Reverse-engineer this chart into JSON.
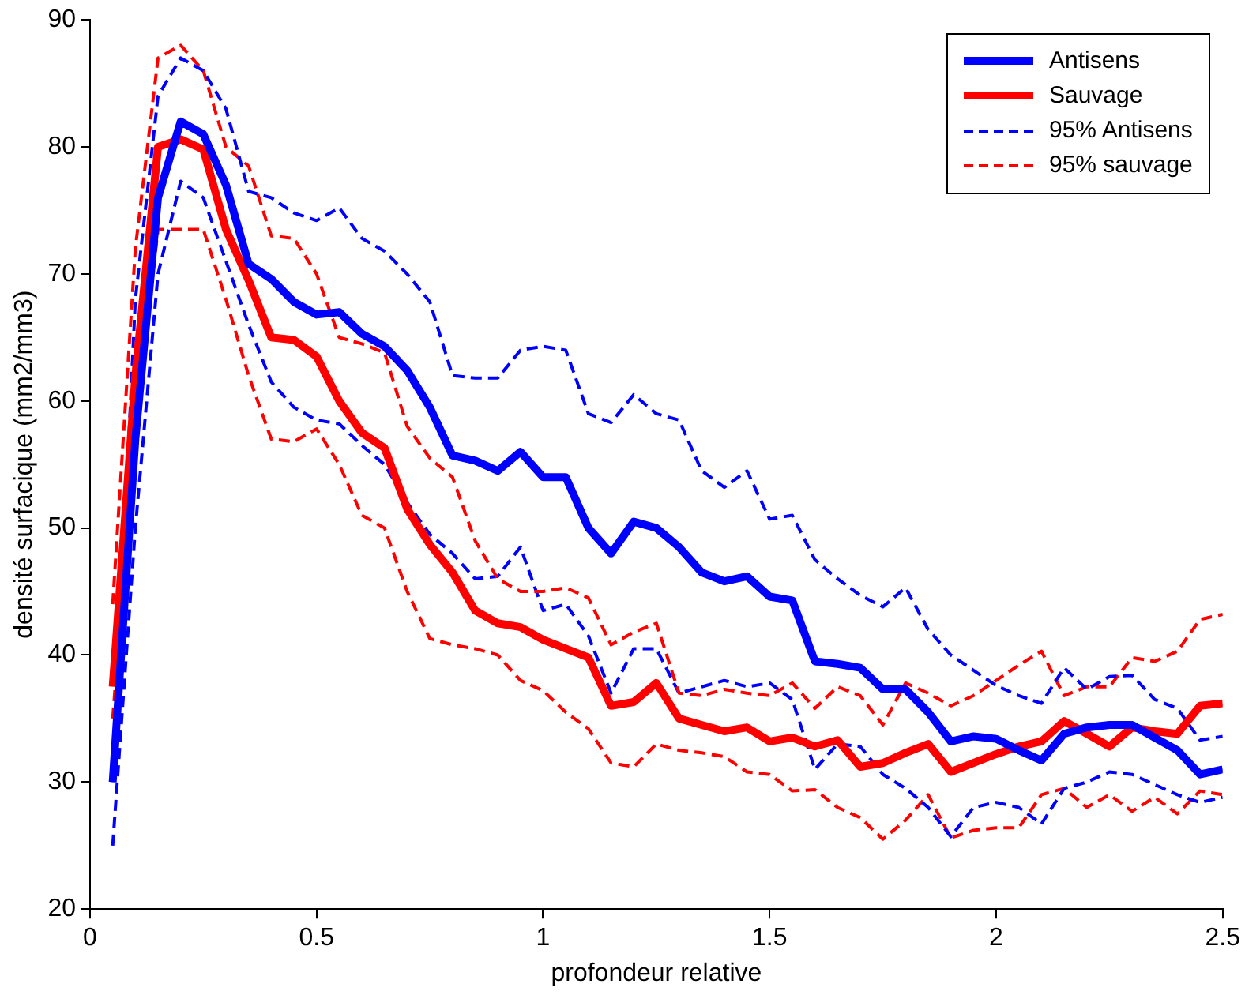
{
  "chart_data": {
    "type": "line",
    "xlabel": "profondeur relative",
    "ylabel": "densité surfacique (mm2/mm3)",
    "xlim": [
      0,
      2.5
    ],
    "ylim": [
      20,
      90
    ],
    "xticks": [
      0,
      0.5,
      1,
      1.5,
      2,
      2.5
    ],
    "yticks": [
      20,
      30,
      40,
      50,
      60,
      70,
      80,
      90
    ],
    "grid": false,
    "legend": "top right",
    "marker": "none",
    "x": [
      0.05,
      0.1,
      0.15,
      0.2,
      0.25,
      0.3,
      0.35,
      0.4,
      0.45,
      0.5,
      0.55,
      0.6,
      0.65,
      0.7,
      0.75,
      0.8,
      0.85,
      0.9,
      0.95,
      1.0,
      1.05,
      1.1,
      1.15,
      1.2,
      1.25,
      1.3,
      1.35,
      1.4,
      1.45,
      1.5,
      1.55,
      1.6,
      1.65,
      1.7,
      1.75,
      1.8,
      1.85,
      1.9,
      1.95,
      2.0,
      2.05,
      2.1,
      2.15,
      2.2,
      2.25,
      2.3,
      2.35,
      2.4,
      2.45,
      2.5
    ],
    "series": [
      {
        "name": "Antisens",
        "color": "#0000ff",
        "line_style": "solid",
        "values": [
          30,
          57,
          76,
          82,
          81,
          77,
          70.8,
          69.6,
          67.8,
          66.8,
          67,
          65.3,
          64.3,
          62.4,
          59.5,
          55.7,
          55.3,
          54.5,
          56,
          54,
          54,
          50,
          48,
          50.5,
          50,
          48.5,
          46.5,
          45.8,
          46.2,
          44.6,
          44.3,
          39.5,
          39.3,
          39,
          37.3,
          37.3,
          35.5,
          33.2,
          33.6,
          33.4,
          32.5,
          31.7,
          33.8,
          34.3,
          34.5,
          34.5,
          33.5,
          32.5,
          30.6,
          31
        ]
      },
      {
        "name": "Sauvage",
        "color": "#ff0000",
        "line_style": "solid",
        "values": [
          37.5,
          62,
          80,
          80.6,
          79.8,
          73.5,
          69.5,
          65,
          64.8,
          63.5,
          60,
          57.5,
          56.3,
          51.5,
          48.7,
          46.5,
          43.5,
          42.5,
          42.2,
          41.2,
          40.5,
          39.8,
          36,
          36.3,
          37.8,
          35,
          34.5,
          34,
          34.3,
          33.2,
          33.5,
          32.8,
          33.3,
          31.2,
          31.5,
          32.3,
          33,
          30.8,
          31.5,
          32.2,
          32.8,
          33.2,
          34.8,
          33.8,
          32.8,
          34.3,
          34,
          33.8,
          36,
          36.2
        ]
      },
      {
        "name": "95% Antisens",
        "color": "#0000ff",
        "line_style": "dashed",
        "values": [
          30,
          68,
          84,
          87,
          86,
          83,
          76.5,
          76,
          74.8,
          74.2,
          75.2,
          72.8,
          71.8,
          70,
          67.8,
          62,
          61.8,
          61.8,
          64,
          64.3,
          64,
          59,
          58.3,
          60.5,
          59,
          58.5,
          54.5,
          53.2,
          54.5,
          50.7,
          51,
          47.5,
          46,
          44.7,
          43.8,
          45.3,
          42,
          40,
          38.8,
          37.6,
          36.8,
          36.2,
          39,
          37.3,
          38.3,
          38.4,
          36.5,
          35.8,
          33.3,
          33.6
        ]
      },
      {
        "name": "95% sauvage",
        "color": "#ff0000",
        "line_style": "dashed",
        "values": [
          44,
          72,
          87,
          88,
          86,
          80,
          78.5,
          73,
          72.8,
          70,
          65,
          64.5,
          63.8,
          58,
          55.5,
          54,
          49,
          46,
          45,
          45,
          45.3,
          44.5,
          40.8,
          41.8,
          42.5,
          37,
          36.8,
          37.3,
          37,
          36.8,
          37.8,
          35.8,
          37.5,
          36.8,
          34.5,
          37.8,
          37,
          36,
          36.8,
          38,
          39.2,
          40.3,
          36.8,
          37.5,
          37.5,
          39.8,
          39.5,
          40.3,
          42.8,
          43.2
        ]
      },
      {
        "color": "#0000ff",
        "line_style": "dashed",
        "values": [
          25,
          50,
          70,
          77.3,
          76,
          71,
          66,
          61.5,
          59.5,
          58.5,
          58.2,
          56.5,
          55,
          52,
          49.5,
          48,
          46,
          46.2,
          48.5,
          43.5,
          44,
          41.5,
          37,
          40.5,
          40.5,
          37,
          37.5,
          38,
          37.5,
          37.8,
          36.5,
          31,
          33,
          32.8,
          30.6,
          29.5,
          28,
          25.7,
          28,
          28.4,
          28,
          26.7,
          29.5,
          30,
          30.8,
          30.6,
          29.8,
          29,
          28.4,
          28.8
        ]
      },
      {
        "color": "#ff0000",
        "line_style": "dashed",
        "values": [
          35,
          58,
          73.5,
          73.5,
          73.5,
          68,
          62,
          57,
          56.8,
          57.8,
          55,
          51,
          50,
          45,
          41.3,
          40.8,
          40.5,
          40,
          38,
          37.2,
          35.5,
          34.2,
          31.5,
          31.2,
          33,
          32.5,
          32.3,
          32,
          30.8,
          30.6,
          29.3,
          29.4,
          28,
          27.2,
          25.5,
          27,
          29,
          25.6,
          26.2,
          26.4,
          26.4,
          29,
          29.5,
          28,
          29,
          27.7,
          28.8,
          27.5,
          29.3,
          29
        ]
      }
    ]
  }
}
